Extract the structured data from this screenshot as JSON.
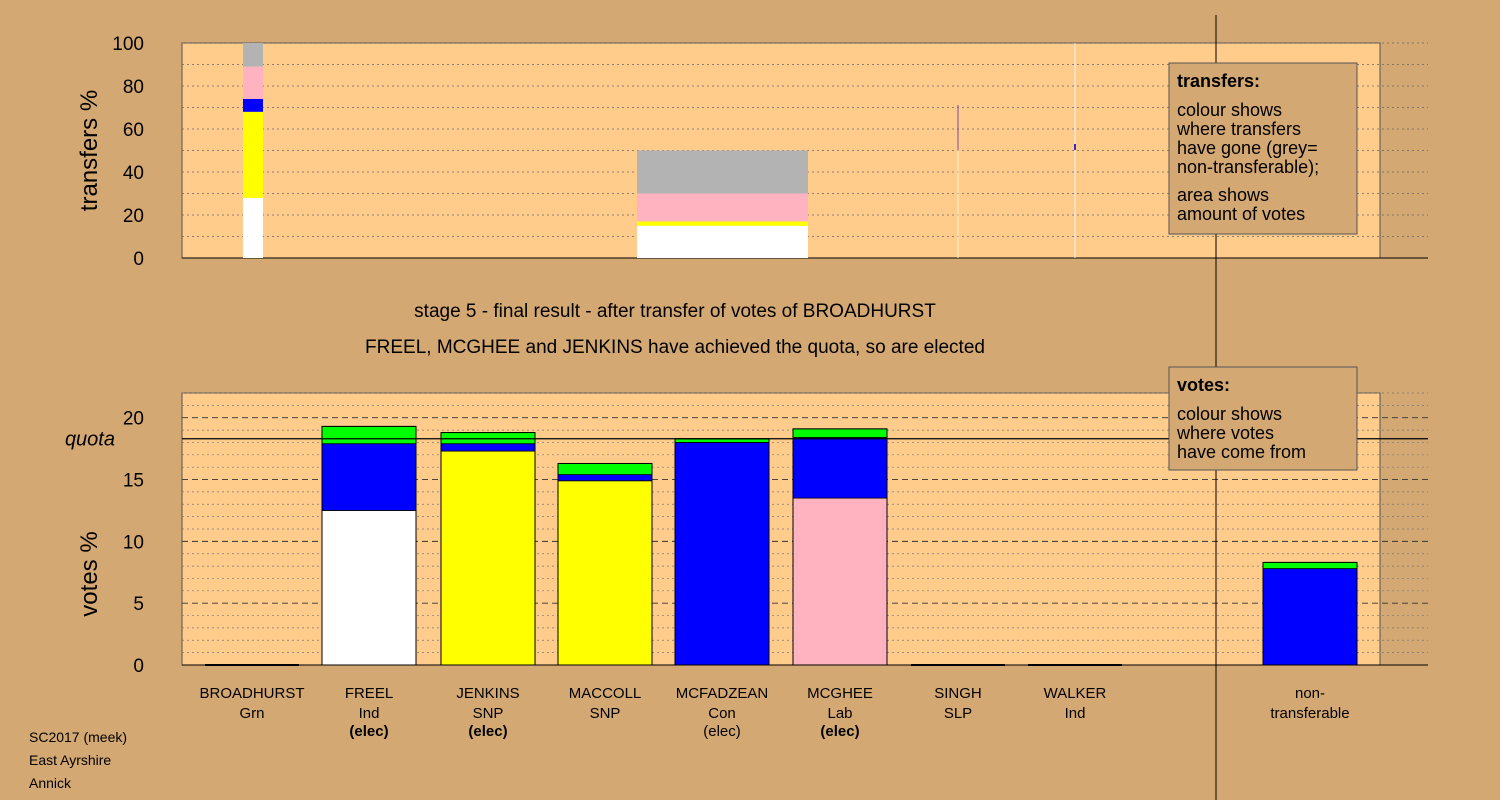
{
  "footer": {
    "line1": "SC2017 (meek)",
    "line2": "East Ayrshire",
    "line3": "Annick"
  },
  "stage": {
    "title": "stage 5 - final result - after transfer of votes of BROADHURST",
    "subtitle": "FREEL, MCGHEE and JENKINS have achieved the quota, so are elected"
  },
  "colors": {
    "background": "#d4a873",
    "plot": "#ffcc8c",
    "Ind": "#ffffff",
    "SNP": "#ffff00",
    "Con": "#0000ff",
    "Grn": "#00ff00",
    "Lab": "#ffb3c1",
    "nontransferable": "#b3b3b3"
  },
  "transfers_legend": {
    "title": "transfers:",
    "lines": [
      "colour shows",
      "where transfers",
      "have gone (grey=",
      "non-transferable);"
    ],
    "lines2": [
      "area shows",
      "amount of votes"
    ]
  },
  "votes_legend": {
    "title": "votes:",
    "lines": [
      "colour shows",
      "where votes",
      "have come from"
    ]
  },
  "chart_data": [
    {
      "type": "bar",
      "stacked": true,
      "ylabel": "transfers %",
      "ylim": [
        0,
        100
      ],
      "yticks": [
        0,
        20,
        40,
        60,
        80,
        100
      ],
      "grid": true,
      "note": "bar width shows amount of votes transferred",
      "series": [
        {
          "from": "BROADHURST",
          "segments": [
            {
              "to": "FREEL",
              "color": "Ind",
              "value": 28
            },
            {
              "to": "JENKINS/MACCOLL",
              "color": "SNP",
              "value": 40
            },
            {
              "to": "MCFADZEAN",
              "color": "Con",
              "value": 6
            },
            {
              "to": "MCGHEE",
              "color": "Lab",
              "value": 15
            },
            {
              "to": "non-transferable",
              "color": "nontransferable",
              "value": 11
            }
          ]
        },
        {
          "from": "transferred surplus",
          "segments": [
            {
              "to": "FREEL",
              "color": "Ind",
              "value": 15
            },
            {
              "to": "SNP",
              "color": "SNP",
              "value": 2
            },
            {
              "to": "MCGHEE",
              "color": "Lab",
              "value": 13
            },
            {
              "to": "non-transferable",
              "color": "nontransferable",
              "value": 20
            }
          ]
        }
      ]
    },
    {
      "type": "bar",
      "stacked": true,
      "ylabel": "votes %",
      "ylim": [
        0,
        22
      ],
      "yticks": [
        0,
        5,
        10,
        15,
        20
      ],
      "quota": 18.3,
      "quota_label": "quota",
      "categories": [
        {
          "name": "BROADHURST",
          "party": "Grn",
          "status": ""
        },
        {
          "name": "FREEL",
          "party": "Ind",
          "status": "(elec)"
        },
        {
          "name": "JENKINS",
          "party": "SNP",
          "status": "(elec)"
        },
        {
          "name": "MACCOLL",
          "party": "SNP",
          "status": ""
        },
        {
          "name": "MCFADZEAN",
          "party": "Con",
          "status": "(elec)"
        },
        {
          "name": "MCGHEE",
          "party": "Lab",
          "status": "(elec)"
        },
        {
          "name": "SINGH",
          "party": "SLP",
          "status": ""
        },
        {
          "name": "WALKER",
          "party": "Ind",
          "status": ""
        },
        {
          "name": "non-\ntransferable",
          "party": "",
          "status": ""
        }
      ],
      "stacks": [
        [],
        [
          {
            "c": "Ind",
            "v": 12.5
          },
          {
            "c": "Con",
            "v": 5.4
          },
          {
            "c": "Grn",
            "v": 1.4
          }
        ],
        [
          {
            "c": "SNP",
            "v": 17.3
          },
          {
            "c": "Con",
            "v": 0.6
          },
          {
            "c": "Grn",
            "v": 0.9
          }
        ],
        [
          {
            "c": "SNP",
            "v": 14.9
          },
          {
            "c": "Con",
            "v": 0.5
          },
          {
            "c": "Grn",
            "v": 0.9
          }
        ],
        [
          {
            "c": "Con",
            "v": 18.0
          },
          {
            "c": "Grn",
            "v": 0.3
          }
        ],
        [
          {
            "c": "Lab",
            "v": 13.5
          },
          {
            "c": "Con",
            "v": 4.9
          },
          {
            "c": "Grn",
            "v": 0.7
          }
        ],
        [],
        [],
        [
          {
            "c": "Con",
            "v": 7.8
          },
          {
            "c": "Grn",
            "v": 0.5
          }
        ]
      ]
    }
  ]
}
